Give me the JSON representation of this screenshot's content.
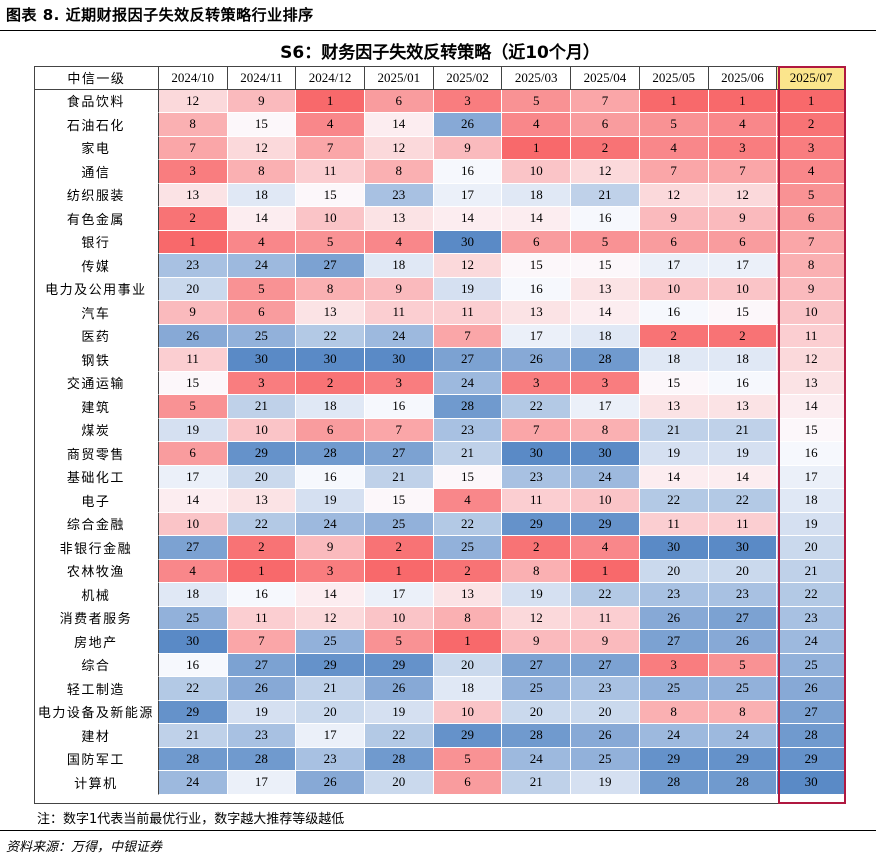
{
  "figure_title": "图表 8. 近期财报因子失效反转策略行业排序",
  "note": "注：数字1代表当前最优行业，数字越大推荐等级越低",
  "source": "资料来源：万得，中银证券",
  "colors": {
    "best": "#f8696b",
    "middle": "#fcfcff",
    "worst": "#5a8ac6",
    "highlight_header": "#fbe58c",
    "highlight_border": "#b01840"
  },
  "chart_data": {
    "type": "table",
    "title": "S6：财务因子失效反转策略（近10个月）",
    "row_header": "中信一级",
    "columns": [
      "2024/10",
      "2024/11",
      "2024/12",
      "2025/01",
      "2025/02",
      "2025/03",
      "2025/04",
      "2025/05",
      "2025/06",
      "2025/07"
    ],
    "highlight_column": "2025/07",
    "value_range": [
      1,
      30
    ],
    "rows": [
      {
        "industry": "食品饮料",
        "values": [
          12,
          9,
          1,
          6,
          3,
          5,
          7,
          1,
          1,
          1
        ]
      },
      {
        "industry": "石油石化",
        "values": [
          8,
          15,
          4,
          14,
          26,
          4,
          6,
          5,
          4,
          2
        ]
      },
      {
        "industry": "家电",
        "values": [
          7,
          12,
          7,
          12,
          9,
          1,
          2,
          4,
          3,
          3
        ]
      },
      {
        "industry": "通信",
        "values": [
          3,
          8,
          11,
          8,
          16,
          10,
          12,
          7,
          7,
          4
        ]
      },
      {
        "industry": "纺织服装",
        "values": [
          13,
          18,
          15,
          23,
          17,
          18,
          21,
          12,
          12,
          5
        ]
      },
      {
        "industry": "有色金属",
        "values": [
          2,
          14,
          10,
          13,
          14,
          14,
          16,
          9,
          9,
          6
        ]
      },
      {
        "industry": "银行",
        "values": [
          1,
          4,
          5,
          4,
          30,
          6,
          5,
          6,
          6,
          7
        ]
      },
      {
        "industry": "传媒",
        "values": [
          23,
          24,
          27,
          18,
          12,
          15,
          15,
          17,
          17,
          8
        ]
      },
      {
        "industry": "电力及公用事业",
        "values": [
          20,
          5,
          8,
          9,
          19,
          16,
          13,
          10,
          10,
          9
        ]
      },
      {
        "industry": "汽车",
        "values": [
          9,
          6,
          13,
          11,
          11,
          13,
          14,
          16,
          15,
          10
        ]
      },
      {
        "industry": "医药",
        "values": [
          26,
          25,
          22,
          24,
          7,
          17,
          18,
          2,
          2,
          11
        ]
      },
      {
        "industry": "钢铁",
        "values": [
          11,
          30,
          30,
          30,
          27,
          26,
          28,
          18,
          18,
          12
        ]
      },
      {
        "industry": "交通运输",
        "values": [
          15,
          3,
          2,
          3,
          24,
          3,
          3,
          15,
          16,
          13
        ]
      },
      {
        "industry": "建筑",
        "values": [
          5,
          21,
          18,
          16,
          28,
          22,
          17,
          13,
          13,
          14
        ]
      },
      {
        "industry": "煤炭",
        "values": [
          19,
          10,
          6,
          7,
          23,
          7,
          8,
          21,
          21,
          15
        ]
      },
      {
        "industry": "商贸零售",
        "values": [
          6,
          29,
          28,
          27,
          21,
          30,
          30,
          19,
          19,
          16
        ]
      },
      {
        "industry": "基础化工",
        "values": [
          17,
          20,
          16,
          21,
          15,
          23,
          24,
          14,
          14,
          17
        ]
      },
      {
        "industry": "电子",
        "values": [
          14,
          13,
          19,
          15,
          4,
          11,
          10,
          22,
          22,
          18
        ]
      },
      {
        "industry": "综合金融",
        "values": [
          10,
          22,
          24,
          25,
          22,
          29,
          29,
          11,
          11,
          19
        ]
      },
      {
        "industry": "非银行金融",
        "values": [
          27,
          2,
          9,
          2,
          25,
          2,
          4,
          30,
          30,
          20
        ]
      },
      {
        "industry": "农林牧渔",
        "values": [
          4,
          1,
          3,
          1,
          2,
          8,
          1,
          20,
          20,
          21
        ]
      },
      {
        "industry": "机械",
        "values": [
          18,
          16,
          14,
          17,
          13,
          19,
          22,
          23,
          23,
          22
        ]
      },
      {
        "industry": "消费者服务",
        "values": [
          25,
          11,
          12,
          10,
          8,
          12,
          11,
          26,
          27,
          23
        ]
      },
      {
        "industry": "房地产",
        "values": [
          30,
          7,
          25,
          5,
          1,
          9,
          9,
          27,
          26,
          24
        ]
      },
      {
        "industry": "综合",
        "values": [
          16,
          27,
          29,
          29,
          20,
          27,
          27,
          3,
          5,
          25
        ]
      },
      {
        "industry": "轻工制造",
        "values": [
          22,
          26,
          21,
          26,
          18,
          25,
          23,
          25,
          25,
          26
        ]
      },
      {
        "industry": "电力设备及新能源",
        "values": [
          29,
          19,
          20,
          19,
          10,
          20,
          20,
          8,
          8,
          27
        ]
      },
      {
        "industry": "建材",
        "values": [
          21,
          23,
          17,
          22,
          29,
          28,
          26,
          24,
          24,
          28
        ]
      },
      {
        "industry": "国防军工",
        "values": [
          28,
          28,
          23,
          28,
          5,
          24,
          25,
          29,
          29,
          29
        ]
      },
      {
        "industry": "计算机",
        "values": [
          24,
          17,
          26,
          20,
          6,
          21,
          19,
          28,
          28,
          30
        ]
      }
    ]
  }
}
